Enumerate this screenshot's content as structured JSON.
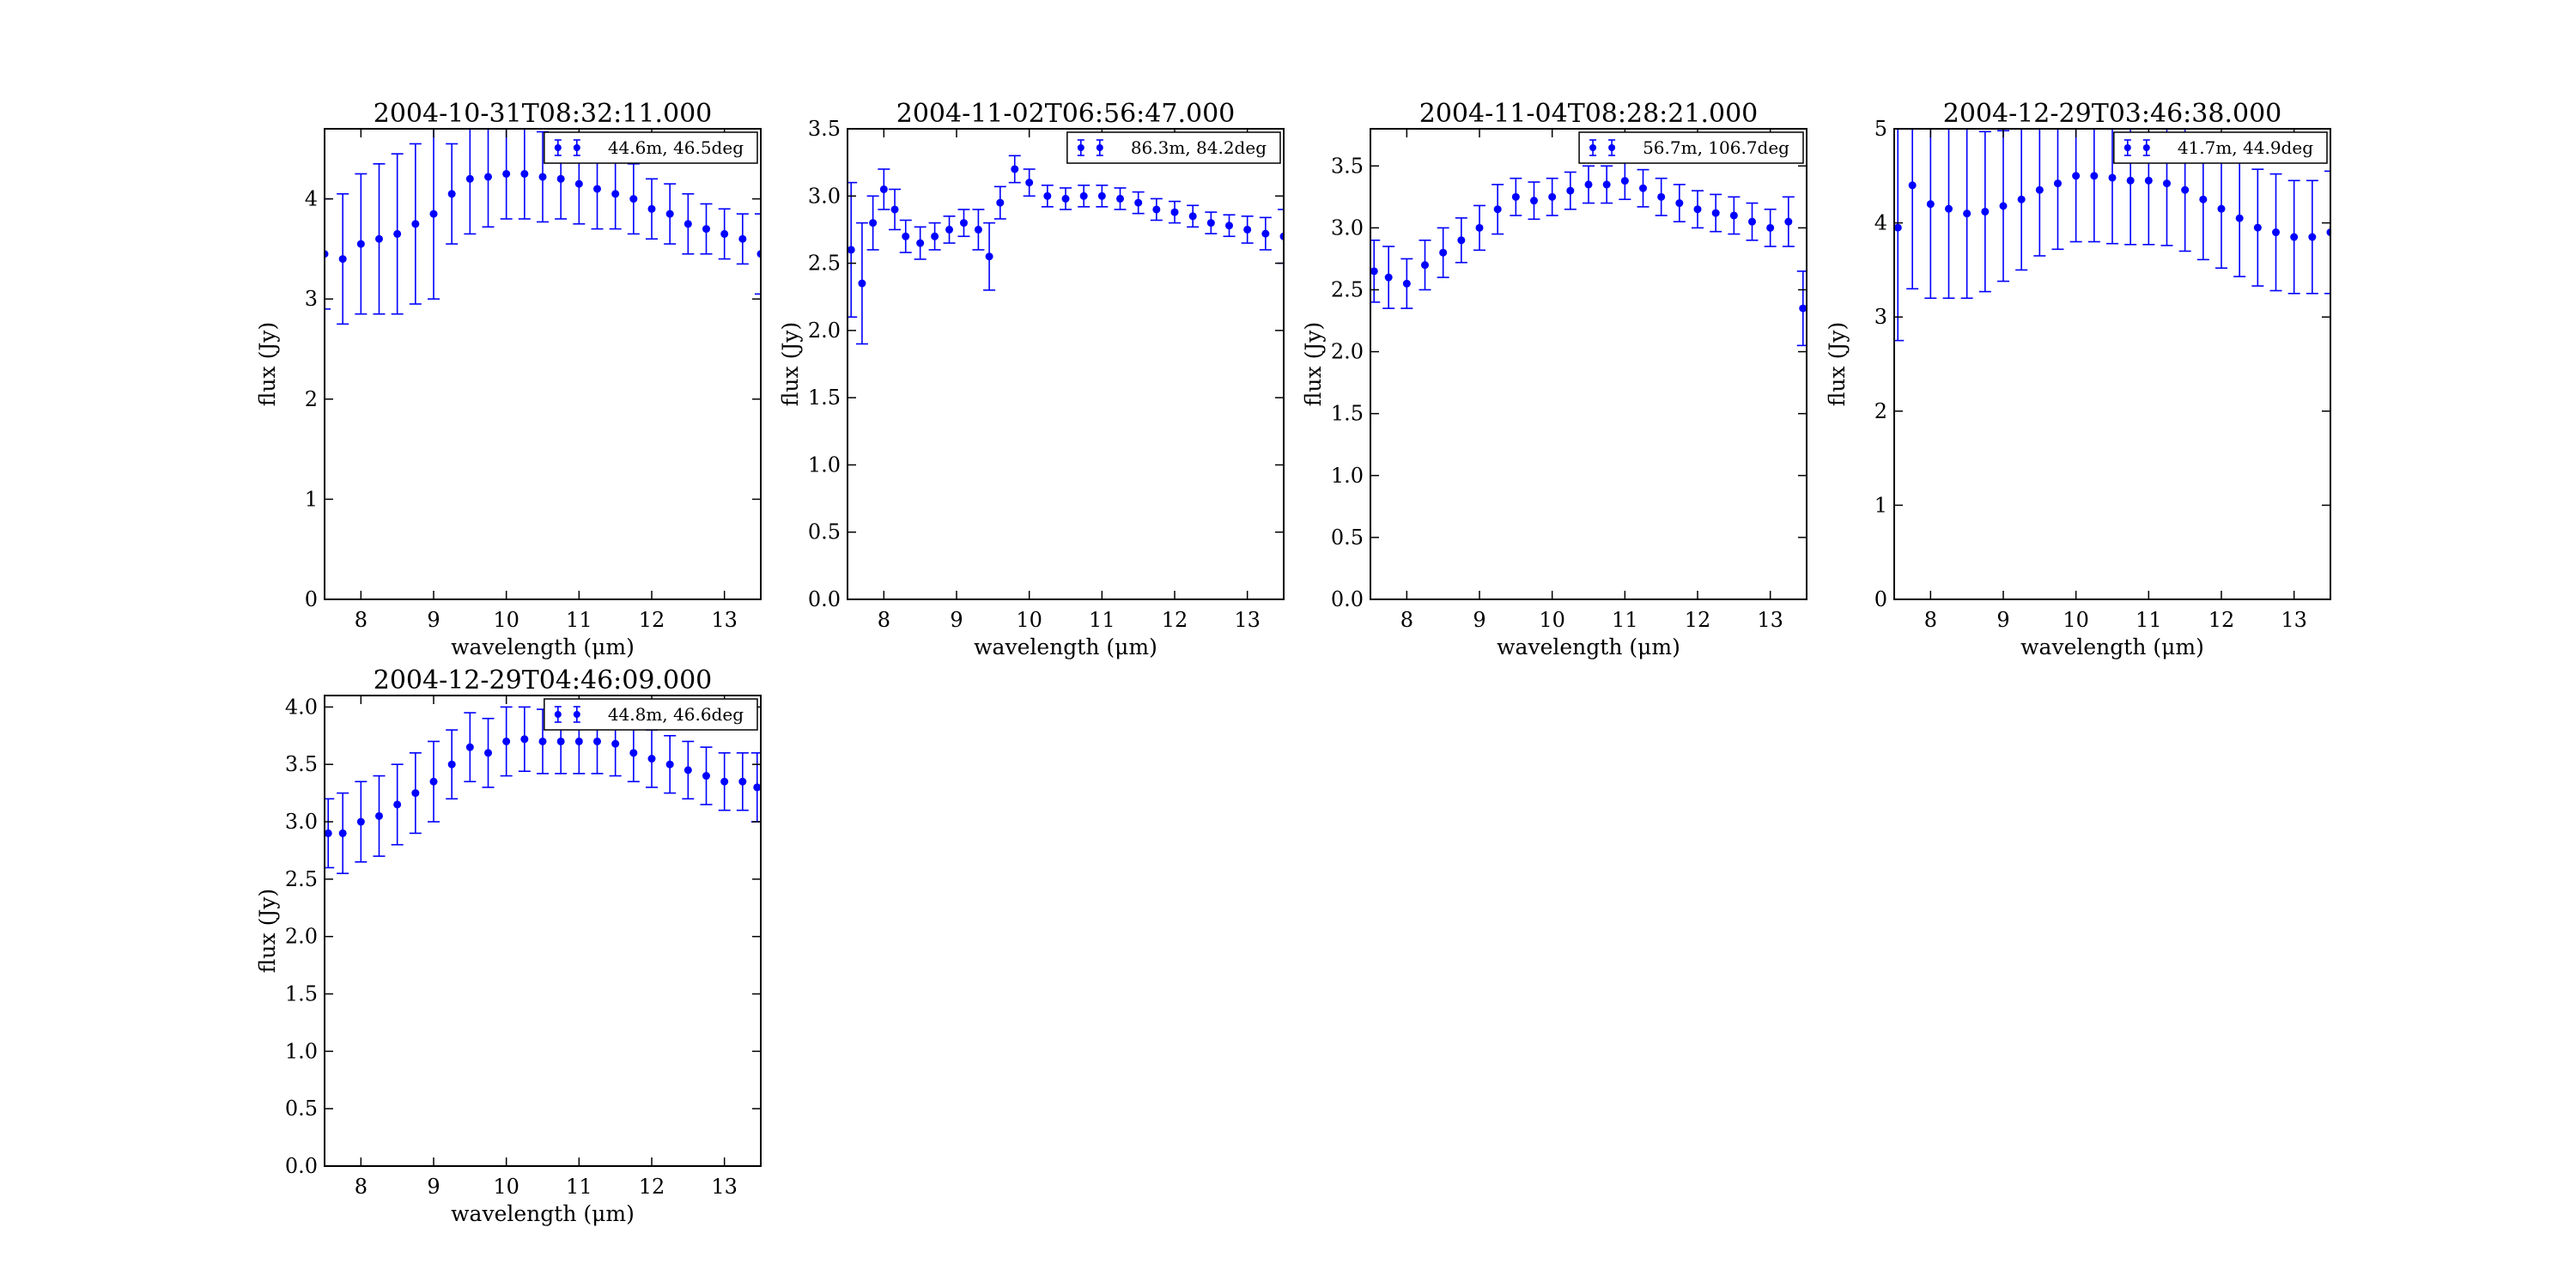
{
  "chart_data": [
    {
      "type": "scatter",
      "title": "2004-10-31T08:32:11.000",
      "xlabel": "wavelength (μm)",
      "ylabel": "flux (Jy)",
      "xlim": [
        7.5,
        13.5
      ],
      "ylim": [
        0,
        4.7
      ],
      "xticks": [
        8,
        9,
        10,
        11,
        12,
        13
      ],
      "yticks": [
        0,
        1,
        2,
        3,
        4
      ],
      "ytick_labels": [
        "0",
        "1",
        "2",
        "3",
        "4"
      ],
      "legend": "top-right",
      "color": "#0000ff",
      "series": [
        {
          "name": "44.6m, 46.5deg",
          "x": [
            7.5,
            7.75,
            8.0,
            8.25,
            8.5,
            8.75,
            9.0,
            9.25,
            9.5,
            9.75,
            10.0,
            10.25,
            10.5,
            10.75,
            11.0,
            11.25,
            11.5,
            11.75,
            12.0,
            12.25,
            12.5,
            12.75,
            13.0,
            13.25,
            13.5
          ],
          "y": [
            3.45,
            3.4,
            3.55,
            3.6,
            3.65,
            3.75,
            3.85,
            4.05,
            4.2,
            4.22,
            4.25,
            4.25,
            4.22,
            4.2,
            4.15,
            4.1,
            4.05,
            4.0,
            3.9,
            3.85,
            3.75,
            3.7,
            3.65,
            3.6,
            3.45
          ],
          "yerr": [
            0.55,
            0.65,
            0.7,
            0.75,
            0.8,
            0.8,
            0.85,
            0.5,
            0.55,
            0.5,
            0.45,
            0.45,
            0.45,
            0.4,
            0.4,
            0.4,
            0.35,
            0.35,
            0.3,
            0.3,
            0.3,
            0.25,
            0.25,
            0.25,
            0.4
          ]
        }
      ]
    },
    {
      "type": "scatter",
      "title": "2004-11-02T06:56:47.000",
      "xlabel": "wavelength (μm)",
      "ylabel": "flux (Jy)",
      "xlim": [
        7.5,
        13.5
      ],
      "ylim": [
        0,
        3.5
      ],
      "xticks": [
        8,
        9,
        10,
        11,
        12,
        13
      ],
      "yticks": [
        0,
        0.5,
        1,
        1.5,
        2,
        2.5,
        3,
        3.5
      ],
      "ytick_labels": [
        "0.0",
        "0.5",
        "1.0",
        "1.5",
        "2.0",
        "2.5",
        "3.0",
        "3.5"
      ],
      "legend": "top-right",
      "color": "#0000ff",
      "series": [
        {
          "name": "86.3m, 84.2deg",
          "x": [
            7.55,
            7.7,
            7.85,
            8.0,
            8.15,
            8.3,
            8.5,
            8.7,
            8.9,
            9.1,
            9.3,
            9.45,
            9.6,
            9.8,
            10.0,
            10.25,
            10.5,
            10.75,
            11.0,
            11.25,
            11.5,
            11.75,
            12.0,
            12.25,
            12.5,
            12.75,
            13.0,
            13.25,
            13.5
          ],
          "y": [
            2.6,
            2.35,
            2.8,
            3.05,
            2.9,
            2.7,
            2.65,
            2.7,
            2.75,
            2.8,
            2.75,
            2.55,
            2.95,
            3.2,
            3.1,
            3.0,
            2.98,
            3.0,
            3.0,
            2.98,
            2.95,
            2.9,
            2.88,
            2.85,
            2.8,
            2.78,
            2.75,
            2.72,
            2.7
          ],
          "yerr": [
            0.5,
            0.45,
            0.2,
            0.15,
            0.15,
            0.12,
            0.12,
            0.1,
            0.1,
            0.1,
            0.15,
            0.25,
            0.12,
            0.1,
            0.1,
            0.08,
            0.08,
            0.08,
            0.08,
            0.08,
            0.08,
            0.08,
            0.08,
            0.08,
            0.08,
            0.08,
            0.1,
            0.12,
            0.2
          ]
        }
      ]
    },
    {
      "type": "scatter",
      "title": "2004-11-04T08:28:21.000",
      "xlabel": "wavelength (μm)",
      "ylabel": "flux (Jy)",
      "xlim": [
        7.5,
        13.5
      ],
      "ylim": [
        0,
        3.8
      ],
      "xticks": [
        8,
        9,
        10,
        11,
        12,
        13
      ],
      "yticks": [
        0,
        0.5,
        1,
        1.5,
        2,
        2.5,
        3,
        3.5
      ],
      "ytick_labels": [
        "0.0",
        "0.5",
        "1.0",
        "1.5",
        "2.0",
        "2.5",
        "3.0",
        "3.5"
      ],
      "legend": "top-right",
      "color": "#0000ff",
      "series": [
        {
          "name": "56.7m, 106.7deg",
          "x": [
            7.55,
            7.75,
            8.0,
            8.25,
            8.5,
            8.75,
            9.0,
            9.25,
            9.5,
            9.75,
            10.0,
            10.25,
            10.5,
            10.75,
            11.0,
            11.25,
            11.5,
            11.75,
            12.0,
            12.25,
            12.5,
            12.75,
            13.0,
            13.25,
            13.45
          ],
          "y": [
            2.65,
            2.6,
            2.55,
            2.7,
            2.8,
            2.9,
            3.0,
            3.15,
            3.25,
            3.22,
            3.25,
            3.3,
            3.35,
            3.35,
            3.38,
            3.32,
            3.25,
            3.2,
            3.15,
            3.12,
            3.1,
            3.05,
            3.0,
            3.05,
            2.35
          ],
          "yerr": [
            0.25,
            0.25,
            0.2,
            0.2,
            0.2,
            0.18,
            0.18,
            0.2,
            0.15,
            0.15,
            0.15,
            0.15,
            0.15,
            0.15,
            0.15,
            0.15,
            0.15,
            0.15,
            0.15,
            0.15,
            0.15,
            0.15,
            0.15,
            0.2,
            0.3
          ]
        }
      ]
    },
    {
      "type": "scatter",
      "title": "2004-12-29T03:46:38.000",
      "xlabel": "wavelength (μm)",
      "ylabel": "flux (Jy)",
      "xlim": [
        7.5,
        13.5
      ],
      "ylim": [
        0,
        5
      ],
      "xticks": [
        8,
        9,
        10,
        11,
        12,
        13
      ],
      "yticks": [
        0,
        1,
        2,
        3,
        4,
        5
      ],
      "ytick_labels": [
        "0",
        "1",
        "2",
        "3",
        "4",
        "5"
      ],
      "legend": "top-right",
      "color": "#0000ff",
      "series": [
        {
          "name": "41.7m, 44.9deg",
          "x": [
            7.55,
            7.75,
            8.0,
            8.25,
            8.5,
            8.75,
            9.0,
            9.25,
            9.5,
            9.75,
            10.0,
            10.25,
            10.5,
            10.75,
            11.0,
            11.25,
            11.5,
            11.75,
            12.0,
            12.25,
            12.5,
            12.75,
            13.0,
            13.25,
            13.5
          ],
          "y": [
            3.95,
            4.4,
            4.2,
            4.15,
            4.1,
            4.12,
            4.18,
            4.25,
            4.35,
            4.42,
            4.5,
            4.5,
            4.48,
            4.45,
            4.45,
            4.42,
            4.35,
            4.25,
            4.15,
            4.05,
            3.95,
            3.9,
            3.85,
            3.85,
            3.9
          ],
          "yerr": [
            1.2,
            1.1,
            1.0,
            0.95,
            0.9,
            0.85,
            0.8,
            0.75,
            0.7,
            0.7,
            0.7,
            0.7,
            0.7,
            0.68,
            0.68,
            0.66,
            0.65,
            0.64,
            0.63,
            0.62,
            0.62,
            0.62,
            0.6,
            0.6,
            0.65
          ]
        }
      ]
    },
    {
      "type": "scatter",
      "title": "2004-12-29T04:46:09.000",
      "xlabel": "wavelength (μm)",
      "ylabel": "flux (Jy)",
      "xlim": [
        7.5,
        13.5
      ],
      "ylim": [
        0,
        4.1
      ],
      "xticks": [
        8,
        9,
        10,
        11,
        12,
        13
      ],
      "yticks": [
        0,
        0.5,
        1,
        1.5,
        2,
        2.5,
        3,
        3.5,
        4
      ],
      "ytick_labels": [
        "0.0",
        "0.5",
        "1.0",
        "1.5",
        "2.0",
        "2.5",
        "3.0",
        "3.5",
        "4.0"
      ],
      "legend": "top-right",
      "color": "#0000ff",
      "series": [
        {
          "name": "44.8m, 46.6deg",
          "x": [
            7.55,
            7.75,
            8.0,
            8.25,
            8.5,
            8.75,
            9.0,
            9.25,
            9.5,
            9.75,
            10.0,
            10.25,
            10.5,
            10.75,
            11.0,
            11.25,
            11.5,
            11.75,
            12.0,
            12.25,
            12.5,
            12.75,
            13.0,
            13.25,
            13.45
          ],
          "y": [
            2.9,
            2.9,
            3.0,
            3.05,
            3.15,
            3.25,
            3.35,
            3.5,
            3.65,
            3.6,
            3.7,
            3.72,
            3.7,
            3.7,
            3.7,
            3.7,
            3.68,
            3.6,
            3.55,
            3.5,
            3.45,
            3.4,
            3.35,
            3.35,
            3.3
          ],
          "yerr": [
            0.3,
            0.35,
            0.35,
            0.35,
            0.35,
            0.35,
            0.35,
            0.3,
            0.3,
            0.3,
            0.3,
            0.28,
            0.28,
            0.28,
            0.28,
            0.28,
            0.28,
            0.25,
            0.25,
            0.25,
            0.25,
            0.25,
            0.25,
            0.25,
            0.3
          ]
        }
      ]
    }
  ]
}
